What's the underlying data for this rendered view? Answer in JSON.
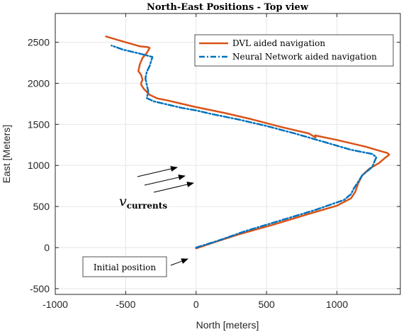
{
  "chart_data": {
    "type": "line",
    "title": "North-East Positions - Top view",
    "xlabel": "North [meters]",
    "ylabel": "East [Meters]",
    "xlim": [
      -1000,
      1450
    ],
    "ylim": [
      -570,
      2850
    ],
    "xticks": [
      -1000,
      -500,
      0,
      500,
      1000
    ],
    "yticks": [
      -500,
      0,
      500,
      1000,
      1500,
      2000,
      2500
    ],
    "xtick_labels": [
      "-1000",
      "-500",
      "0",
      "500",
      "1000"
    ],
    "ytick_labels": [
      "-500",
      "0",
      "500",
      "1000",
      "1500",
      "2000",
      "2500"
    ],
    "grid": true,
    "legend_position": "top-right",
    "series": [
      {
        "name": "DVL aided navigation",
        "color": "#D95319",
        "style": "solid",
        "x": [
          0,
          120,
          300,
          550,
          800,
          1000,
          1100,
          1130,
          1150,
          1180,
          1230,
          1300,
          1340,
          1370,
          1360,
          1300,
          1200,
          1000,
          845,
          848,
          800,
          600,
          400,
          200,
          0,
          -100,
          -200,
          -260,
          -280,
          -330,
          -370,
          -390,
          -390,
          -380,
          -390,
          -410,
          -400,
          -380,
          -350,
          -340,
          -330,
          -340,
          -400,
          -460,
          -520,
          -580,
          -640
        ],
        "y": [
          -10,
          60,
          160,
          280,
          410,
          510,
          600,
          680,
          780,
          880,
          960,
          1030,
          1090,
          1130,
          1150,
          1180,
          1230,
          1310,
          1365,
          1340,
          1390,
          1470,
          1560,
          1640,
          1710,
          1750,
          1790,
          1810,
          1820,
          1860,
          1930,
          1980,
          2010,
          2040,
          2100,
          2150,
          2230,
          2310,
          2370,
          2400,
          2430,
          2440,
          2450,
          2480,
          2510,
          2540,
          2570
        ]
      },
      {
        "name": "Neural Network aided navigation",
        "color": "#0072BD",
        "style": "dashdot",
        "x": [
          0,
          150,
          350,
          600,
          850,
          1050,
          1100,
          1120,
          1150,
          1180,
          1250,
          1280,
          1250,
          1100,
          900,
          700,
          500,
          300,
          100,
          0,
          -100,
          -200,
          -300,
          -350,
          -340,
          -350,
          -360,
          -350,
          -330,
          -320,
          -310,
          -330,
          -420,
          -520,
          -600
        ],
        "y": [
          0,
          80,
          200,
          330,
          460,
          580,
          650,
          720,
          800,
          880,
          980,
          1100,
          1140,
          1190,
          1290,
          1390,
          1480,
          1560,
          1630,
          1670,
          1700,
          1740,
          1780,
          1820,
          1900,
          1980,
          2060,
          2140,
          2210,
          2270,
          2320,
          2330,
          2370,
          2410,
          2460
        ]
      }
    ],
    "annotations": [
      {
        "text": "Initial position"
      },
      {
        "text": "v",
        "subscript": "currents"
      }
    ]
  }
}
